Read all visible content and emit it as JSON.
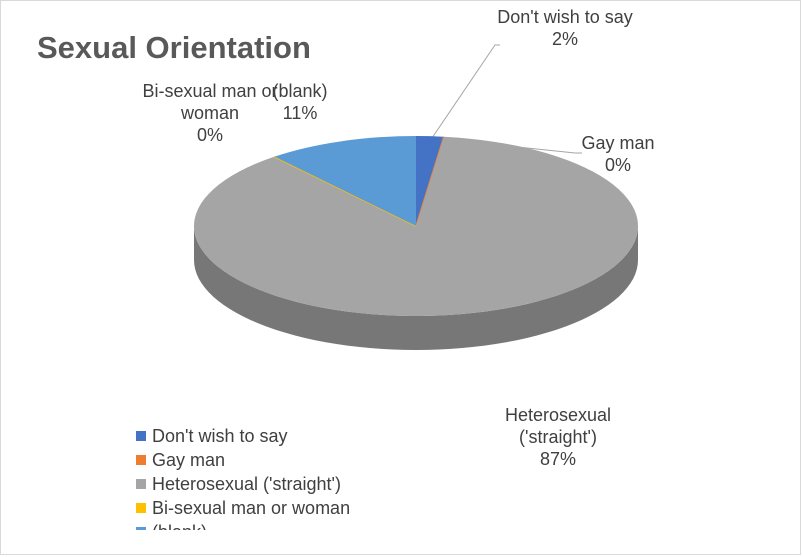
{
  "chart_data": {
    "type": "pie3d",
    "title": "Sexual Orientation",
    "categories": [
      "Don't wish to say",
      "Gay man",
      "Heterosexual ('straight')",
      "Bi-sexual man or woman",
      "(blank)"
    ],
    "values": [
      2,
      0,
      87,
      0,
      11
    ],
    "value_labels": [
      "2%",
      "0%",
      "87%",
      "0%",
      "11%"
    ],
    "colors": [
      "#4472c4",
      "#ed7d31",
      "#a5a5a5",
      "#ffc000",
      "#5b9bd5"
    ],
    "legend": "bottom-left"
  }
}
